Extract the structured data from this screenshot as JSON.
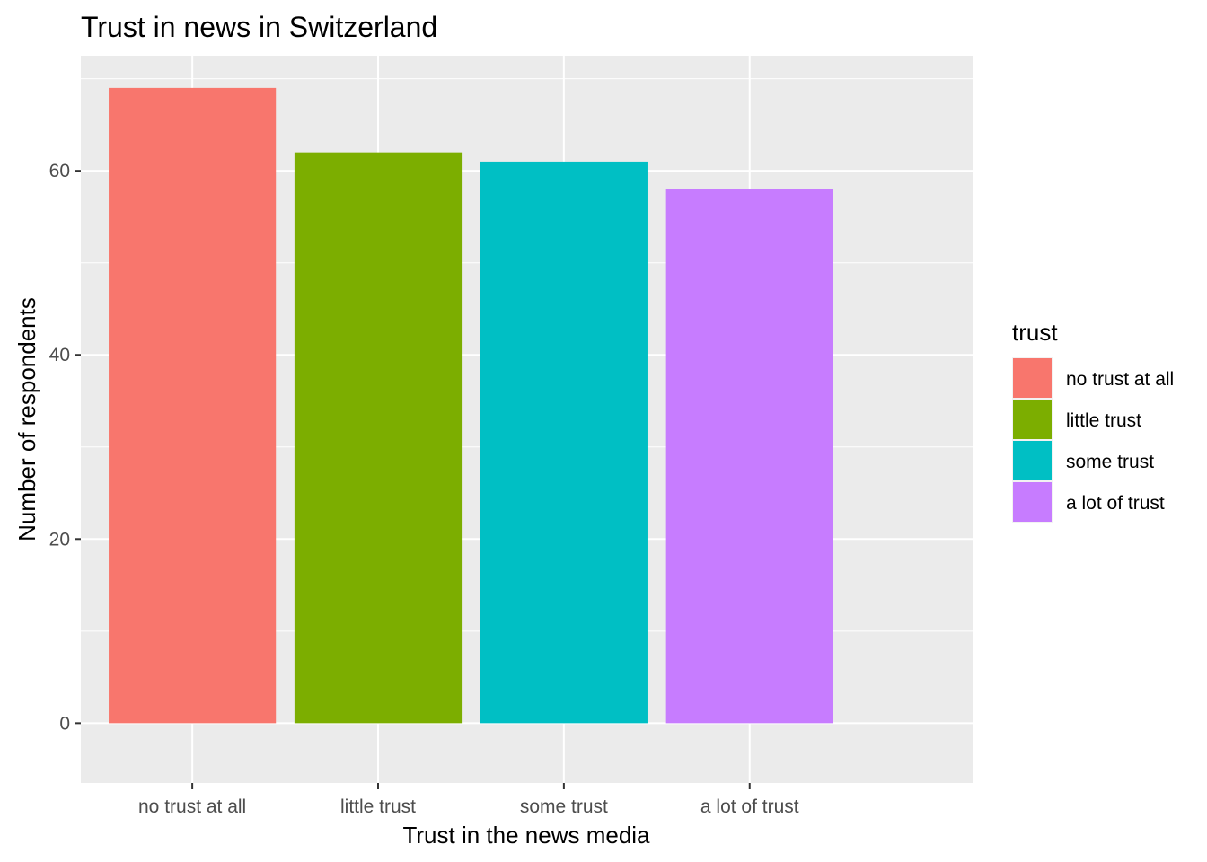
{
  "chart_data": {
    "type": "bar",
    "title": "Trust in news in Switzerland",
    "xlabel": "Trust in the news media",
    "ylabel": "Number of respondents",
    "categories": [
      "no trust at all",
      "little trust",
      "some trust",
      "a lot of trust"
    ],
    "values": [
      69,
      62,
      61,
      58
    ],
    "colors": [
      "#F8766D",
      "#7CAE00",
      "#00BFC4",
      "#C77CFF"
    ],
    "ylim": [
      -6.5,
      72.5
    ],
    "yticks": [
      0,
      20,
      40,
      60
    ],
    "grid": true,
    "panel_background": "#EBEBEB",
    "legend": {
      "title": "trust",
      "position": "right",
      "entries": [
        "no trust at all",
        "little trust",
        "some trust",
        "a lot of trust"
      ]
    }
  }
}
